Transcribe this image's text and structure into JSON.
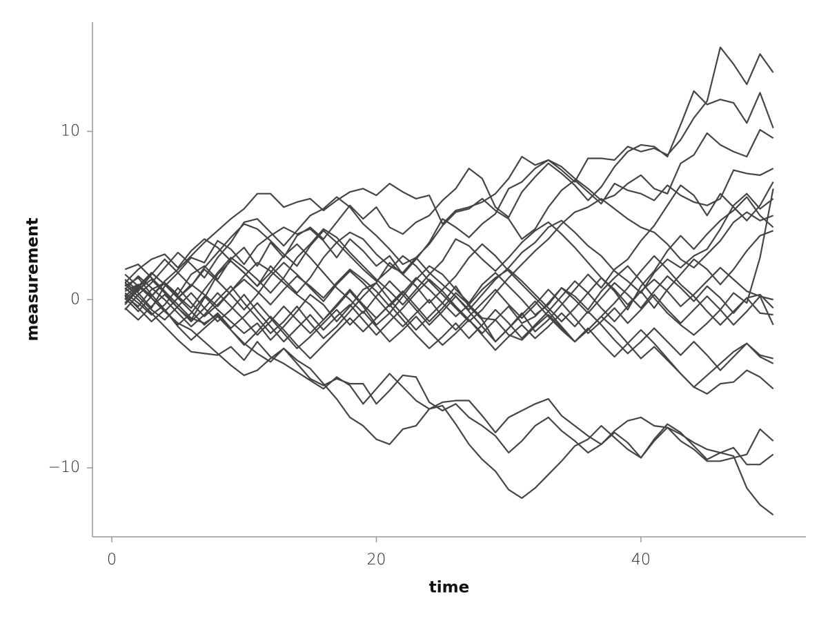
{
  "chart_data": {
    "type": "line",
    "xlabel": "time",
    "ylabel": "measurement",
    "x": [
      1,
      2,
      3,
      4,
      5,
      6,
      7,
      8,
      9,
      10,
      11,
      12,
      13,
      14,
      15,
      16,
      17,
      18,
      19,
      20,
      21,
      22,
      23,
      24,
      25,
      26,
      27,
      28,
      29,
      30,
      31,
      32,
      33,
      34,
      35,
      36,
      37,
      38,
      39,
      40,
      41,
      42,
      43,
      44,
      45,
      46,
      47,
      48,
      49,
      50
    ],
    "xlim": [
      -1.46,
      52.47
    ],
    "ylim": [
      -14.1,
      16.5
    ],
    "xticks": [
      0,
      20,
      40
    ],
    "yticks": [
      {
        "value": -10,
        "label": "−10"
      },
      0,
      10
    ],
    "series": [
      {
        "color": "#444444",
        "values": [
          0.5,
          0.9,
          0.2,
          1.1,
          1.8,
          2.6,
          3.4,
          4.1,
          4.8,
          5.4,
          6.3,
          6.3,
          5.5,
          5.8,
          6.0,
          5.3,
          5.9,
          6.4,
          6.6,
          6.2,
          6.9,
          6.4,
          6.0,
          6.2,
          4.5,
          5.3,
          5.5,
          5.8,
          6.3,
          7.2,
          8.5,
          8.0,
          8.3,
          7.7,
          7.0,
          8.4,
          8.4,
          8.3,
          9.1,
          8.8,
          9.0,
          8.6,
          9.5,
          10.8,
          11.8,
          15.0,
          14.0,
          12.8,
          14.6,
          13.5
        ]
      },
      {
        "color": "#444444",
        "values": [
          0.2,
          -0.4,
          0.6,
          1.0,
          0.3,
          1.5,
          2.0,
          1.2,
          2.4,
          3.1,
          2.0,
          3.4,
          2.5,
          3.8,
          4.3,
          3.6,
          4.6,
          5.6,
          4.8,
          5.5,
          4.3,
          3.9,
          4.6,
          5.0,
          5.9,
          6.6,
          7.8,
          7.2,
          5.5,
          4.9,
          6.4,
          7.3,
          8.1,
          7.5,
          6.8,
          5.9,
          6.7,
          7.9,
          8.8,
          9.2,
          9.1,
          8.5,
          10.4,
          12.4,
          11.6,
          11.9,
          11.7,
          10.5,
          12.3,
          10.2
        ]
      },
      {
        "color": "#444444",
        "values": [
          1.0,
          0.4,
          -0.5,
          0.8,
          1.6,
          2.5,
          2.2,
          3.5,
          3.0,
          2.1,
          3.2,
          3.8,
          4.3,
          3.9,
          4.2,
          3.5,
          2.5,
          3.6,
          2.9,
          2.0,
          2.6,
          1.5,
          2.4,
          3.4,
          4.8,
          4.3,
          3.7,
          4.5,
          5.1,
          6.6,
          7.0,
          7.8,
          8.3,
          7.9,
          7.2,
          6.6,
          5.9,
          6.2,
          6.9,
          7.4,
          6.6,
          6.3,
          8.1,
          8.6,
          9.9,
          9.2,
          8.8,
          8.5,
          10.1,
          9.6
        ]
      },
      {
        "color": "#444444",
        "values": [
          -0.3,
          0.6,
          1.2,
          0.4,
          -0.5,
          -1.2,
          0.1,
          1.5,
          2.3,
          1.6,
          0.8,
          2.0,
          1.2,
          0.4,
          1.3,
          2.5,
          3.4,
          4.0,
          3.6,
          2.7,
          2.0,
          1.6,
          2.5,
          3.3,
          4.4,
          5.2,
          5.4,
          6.0,
          5.3,
          4.8,
          3.6,
          4.2,
          5.5,
          6.5,
          7.1,
          6.4,
          5.7,
          6.9,
          6.5,
          6.3,
          5.9,
          6.8,
          6.2,
          5.8,
          5.6,
          6.0,
          7.7,
          7.5,
          7.4,
          7.8
        ]
      },
      {
        "color": "#444444",
        "values": [
          0.8,
          1.3,
          0.3,
          -0.6,
          -1.5,
          -0.8,
          0.2,
          -0.6,
          -1.3,
          -2.0,
          -1.4,
          -2.4,
          -1.6,
          -0.7,
          0.3,
          -0.3,
          -1.3,
          -0.4,
          0.6,
          1.0,
          0.0,
          -0.9,
          -1.8,
          -1.0,
          -0.2,
          0.8,
          -0.4,
          -1.2,
          -2.5,
          -1.7,
          -0.8,
          -1.9,
          -1.2,
          -0.3,
          0.6,
          1.5,
          0.7,
          1.8,
          2.4,
          3.5,
          4.4,
          5.6,
          6.8,
          6.2,
          5.0,
          6.3,
          5.5,
          4.7,
          5.6,
          7.0
        ]
      },
      {
        "color": "#444444",
        "values": [
          0.4,
          -0.2,
          -0.9,
          -0.3,
          0.7,
          -0.2,
          -1.0,
          -0.3,
          0.5,
          1.4,
          2.2,
          1.7,
          1.0,
          0.3,
          -0.3,
          -1.2,
          -0.4,
          0.5,
          -0.4,
          -1.5,
          -0.8,
          0.2,
          1.2,
          2.0,
          1.5,
          0.6,
          -0.2,
          0.9,
          1.6,
          0.8,
          0.0,
          -0.9,
          -0.3,
          0.7,
          0.2,
          -0.6,
          0.5,
          1.3,
          2.0,
          1.1,
          0.1,
          -0.8,
          -1.5,
          -2.1,
          -1.4,
          -0.6,
          0.4,
          -0.2,
          2.5,
          6.6
        ]
      },
      {
        "color": "#444444",
        "values": [
          -0.6,
          0.3,
          1.0,
          1.9,
          2.8,
          2.1,
          1.3,
          2.5,
          3.4,
          4.6,
          4.8,
          4.0,
          3.2,
          4.1,
          5.0,
          5.4,
          6.1,
          5.5,
          4.5,
          3.8,
          3.0,
          2.1,
          2.5,
          1.6,
          0.9,
          0.2,
          -0.6,
          0.3,
          1.2,
          1.9,
          2.8,
          3.4,
          4.3,
          4.7,
          4.0,
          3.2,
          2.6,
          1.7,
          1.1,
          0.4,
          1.6,
          2.4,
          1.9,
          2.6,
          3.0,
          4.2,
          5.6,
          6.3,
          5.4,
          6.0
        ]
      },
      {
        "color": "#444444",
        "values": [
          1.2,
          0.5,
          1.5,
          2.4,
          1.6,
          0.8,
          1.9,
          2.8,
          3.7,
          4.5,
          4.2,
          3.5,
          2.7,
          2.0,
          3.2,
          4.1,
          3.4,
          2.6,
          1.8,
          1.1,
          1.8,
          2.6,
          2.0,
          1.1,
          0.3,
          -0.5,
          -1.3,
          -0.6,
          0.4,
          1.3,
          2.1,
          2.9,
          3.6,
          4.5,
          5.2,
          5.5,
          6.0,
          5.4,
          4.8,
          4.3,
          4.0,
          3.3,
          2.4,
          1.9,
          2.7,
          3.5,
          4.6,
          5.2,
          4.7,
          5.0
        ]
      },
      {
        "color": "#444444",
        "values": [
          0.1,
          -0.7,
          0.2,
          1.0,
          0.2,
          -0.5,
          0.6,
          1.6,
          2.5,
          1.9,
          1.2,
          0.4,
          1.3,
          2.5,
          3.3,
          4.2,
          3.7,
          2.8,
          2.0,
          1.2,
          0.5,
          -0.3,
          0.6,
          1.5,
          2.3,
          3.6,
          3.2,
          2.4,
          1.7,
          2.5,
          3.4,
          4.1,
          4.6,
          3.9,
          3.1,
          2.2,
          1.3,
          0.5,
          -0.6,
          0.8,
          1.7,
          2.9,
          3.8,
          3.0,
          3.9,
          4.7,
          5.3,
          6.1,
          5.0,
          4.3
        ]
      },
      {
        "color": "#444444",
        "values": [
          0.6,
          1.4,
          0.7,
          0.0,
          -0.8,
          -1.6,
          -0.9,
          0.0,
          0.8,
          -0.2,
          -1.1,
          -2.0,
          -1.3,
          -0.4,
          -1.4,
          -2.3,
          -1.6,
          -0.7,
          0.2,
          1.0,
          2.2,
          1.5,
          0.8,
          -0.2,
          0.6,
          1.4,
          2.5,
          3.3,
          2.6,
          1.7,
          0.9,
          0.1,
          -0.7,
          0.2,
          1.1,
          0.4,
          -0.5,
          -1.3,
          -0.4,
          0.5,
          -0.5,
          0.6,
          1.5,
          2.4,
          1.8,
          0.9,
          1.8,
          2.9,
          3.8,
          4.1
        ]
      },
      {
        "color": "#444444",
        "values": [
          0.0,
          0.8,
          0.1,
          -0.7,
          0.1,
          0.9,
          0.3,
          -0.4,
          0.5,
          1.2,
          0.5,
          -0.3,
          0.6,
          1.4,
          0.8,
          0.1,
          1.0,
          1.8,
          1.2,
          0.5,
          -0.4,
          0.4,
          1.3,
          0.6,
          -0.2,
          -1.0,
          -0.3,
          0.6,
          1.3,
          1.8,
          1.1,
          0.3,
          -0.5,
          -1.3,
          -0.5,
          0.4,
          1.3,
          0.6,
          -0.3,
          0.5,
          1.2,
          0.5,
          -0.4,
          0.3,
          1.1,
          1.9,
          1.2,
          0.5,
          0.2,
          0.0
        ]
      },
      {
        "color": "#444444",
        "values": [
          0.9,
          0.2,
          -0.6,
          -1.2,
          -0.4,
          0.4,
          -0.5,
          -1.3,
          -0.6,
          0.3,
          -0.7,
          -1.6,
          -2.5,
          -1.7,
          -0.9,
          -1.8,
          -1.0,
          -0.3,
          -1.2,
          -2.1,
          -1.3,
          -0.5,
          0.4,
          1.2,
          0.5,
          -0.4,
          -1.2,
          -2.0,
          -1.2,
          -0.4,
          -1.4,
          -1.0,
          -0.2,
          0.7,
          0.0,
          -0.8,
          0.1,
          1.0,
          0.3,
          -0.5,
          0.5,
          1.4,
          0.7,
          -0.1,
          0.8,
          0.1,
          -0.8,
          0.1,
          0.3,
          -0.5
        ]
      },
      {
        "color": "#444444",
        "values": [
          -0.2,
          0.7,
          1.6,
          0.9,
          0.1,
          0.8,
          1.8,
          1.1,
          0.3,
          -0.6,
          0.3,
          1.4,
          2.2,
          1.5,
          0.7,
          -0.1,
          0.9,
          1.7,
          1.0,
          0.1,
          -0.8,
          -1.6,
          -0.8,
          0.0,
          -1.0,
          -1.8,
          -1.0,
          -0.2,
          0.6,
          -0.3,
          -1.1,
          -0.3,
          0.6,
          -0.2,
          -1.1,
          -2.0,
          -1.3,
          -0.5,
          -1.4,
          -0.6,
          0.3,
          -0.6,
          -1.4,
          -0.6,
          0.2,
          -0.6,
          -1.5,
          -0.7,
          0.2,
          -1.5
        ]
      },
      {
        "color": "#444444",
        "values": [
          0.3,
          -0.5,
          -1.3,
          -0.6,
          -1.6,
          -2.4,
          -1.7,
          -1.0,
          -1.8,
          -2.7,
          -1.9,
          -1.0,
          -1.8,
          -2.7,
          -3.5,
          -2.7,
          -1.9,
          -1.1,
          -1.9,
          -1.1,
          -0.3,
          -1.2,
          -2.1,
          -2.9,
          -2.2,
          -1.4,
          -2.3,
          -1.5,
          -0.6,
          -1.4,
          -2.3,
          -1.5,
          -0.7,
          -1.6,
          -2.5,
          -1.7,
          -2.6,
          -3.4,
          -2.6,
          -1.8,
          -2.6,
          -3.5,
          -4.4,
          -5.2,
          -4.5,
          -3.8,
          -3.1,
          -2.6,
          -3.3,
          -3.5
        ]
      },
      {
        "color": "#444444",
        "values": [
          1.5,
          0.8,
          1.6,
          0.9,
          0.1,
          -0.7,
          -1.5,
          -0.8,
          -1.7,
          -1.0,
          -0.2,
          -1.1,
          -2.0,
          -2.9,
          -2.2,
          -1.4,
          -0.6,
          -1.5,
          -0.7,
          -1.6,
          -2.5,
          -1.8,
          -1.0,
          -1.9,
          -2.7,
          -2.0,
          -1.2,
          -2.1,
          -3.0,
          -2.2,
          -1.5,
          -2.3,
          -1.6,
          -0.8,
          -1.6,
          -0.7,
          -1.5,
          -2.4,
          -3.2,
          -2.5,
          -1.7,
          -2.5,
          -3.3,
          -2.5,
          -3.3,
          -4.2,
          -3.4,
          -2.6,
          -3.4,
          -3.8
        ]
      },
      {
        "color": "#444444",
        "values": [
          -0.5,
          -1.2,
          -0.4,
          0.3,
          -0.5,
          -1.3,
          -0.5,
          0.4,
          -0.4,
          -1.2,
          -2.1,
          -1.3,
          -0.4,
          -1.2,
          -2.0,
          -1.2,
          -0.3,
          0.6,
          -0.3,
          -1.1,
          -0.3,
          0.5,
          -0.4,
          -1.3,
          -0.5,
          0.4,
          -0.3,
          -1.1,
          -1.2,
          -2.1,
          -2.4,
          -1.6,
          -0.9,
          -1.7,
          -2.5,
          -1.8,
          -1.0,
          -1.7,
          -2.6,
          -3.5,
          -2.8,
          -3.6,
          -4.4,
          -5.2,
          -5.6,
          -5.0,
          -4.9,
          -4.2,
          -4.6,
          -5.3
        ]
      },
      {
        "color": "#444444",
        "values": [
          0.7,
          0.0,
          -0.8,
          -1.6,
          -2.4,
          -3.1,
          -3.2,
          -3.3,
          -2.8,
          -3.6,
          -2.5,
          -3.4,
          -3.8,
          -4.3,
          -4.8,
          -5.3,
          -4.6,
          -5.1,
          -6.2,
          -5.3,
          -4.4,
          -5.2,
          -6.0,
          -6.5,
          -6.1,
          -6.0,
          -6.0,
          -6.9,
          -7.9,
          -7.0,
          -6.6,
          -6.2,
          -5.9,
          -6.9,
          -7.5,
          -8.1,
          -8.6,
          -7.8,
          -7.2,
          -7.0,
          -7.5,
          -7.6,
          -8.4,
          -8.9,
          -9.6,
          -9.6,
          -9.4,
          -9.2,
          -7.7,
          -8.4
        ]
      },
      {
        "color": "#444444",
        "values": [
          0.2,
          0.9,
          0.1,
          -0.7,
          -1.4,
          -1.8,
          -2.5,
          -3.2,
          -3.9,
          -4.5,
          -4.2,
          -3.5,
          -2.9,
          -3.8,
          -4.7,
          -5.1,
          -4.7,
          -5.0,
          -5.0,
          -6.2,
          -5.4,
          -4.5,
          -4.6,
          -6.1,
          -6.6,
          -6.2,
          -7.0,
          -7.5,
          -8.1,
          -9.1,
          -8.4,
          -7.5,
          -7.0,
          -7.8,
          -8.4,
          -9.1,
          -8.6,
          -7.9,
          -8.5,
          -9.4,
          -8.3,
          -7.4,
          -7.9,
          -8.7,
          -9.5,
          -9.1,
          -8.8,
          -9.8,
          -9.8,
          -9.2
        ]
      },
      {
        "color": "#444444",
        "values": [
          1.8,
          2.1,
          1.3,
          0.5,
          -0.3,
          -1.1,
          -1.4,
          -0.9,
          -1.8,
          -2.6,
          -3.2,
          -3.7,
          -2.9,
          -3.6,
          -4.1,
          -5.0,
          -5.9,
          -7.0,
          -7.5,
          -8.3,
          -8.6,
          -7.7,
          -7.5,
          -6.5,
          -6.3,
          -7.4,
          -8.6,
          -9.5,
          -10.2,
          -11.3,
          -11.8,
          -11.2,
          -10.4,
          -9.6,
          -8.7,
          -8.3,
          -7.5,
          -8.2,
          -8.9,
          -9.4,
          -8.4,
          -7.6,
          -8.0,
          -8.5,
          -8.9,
          -9.1,
          -9.3,
          -11.2,
          -12.2,
          -12.8
        ]
      },
      {
        "color": "#444444",
        "values": [
          1.0,
          1.8,
          2.4,
          2.7,
          1.9,
          2.9,
          3.6,
          3.1,
          2.3,
          1.6,
          0.8,
          1.6,
          2.6,
          3.3,
          2.5,
          1.6,
          0.7,
          0.0,
          -0.8,
          0.2,
          1.1,
          0.3,
          -0.6,
          -1.5,
          -0.7,
          0.2,
          -0.7,
          -1.6,
          -2.5,
          -1.7,
          -0.9,
          -0.1,
          -1.0,
          -1.8,
          -2.5,
          -1.8,
          -1.0,
          -0.2,
          0.7,
          1.7,
          2.6,
          1.8,
          0.9,
          0.2,
          -0.7,
          -1.5,
          -0.7,
          0.1,
          -0.8,
          -0.9
        ]
      }
    ]
  }
}
